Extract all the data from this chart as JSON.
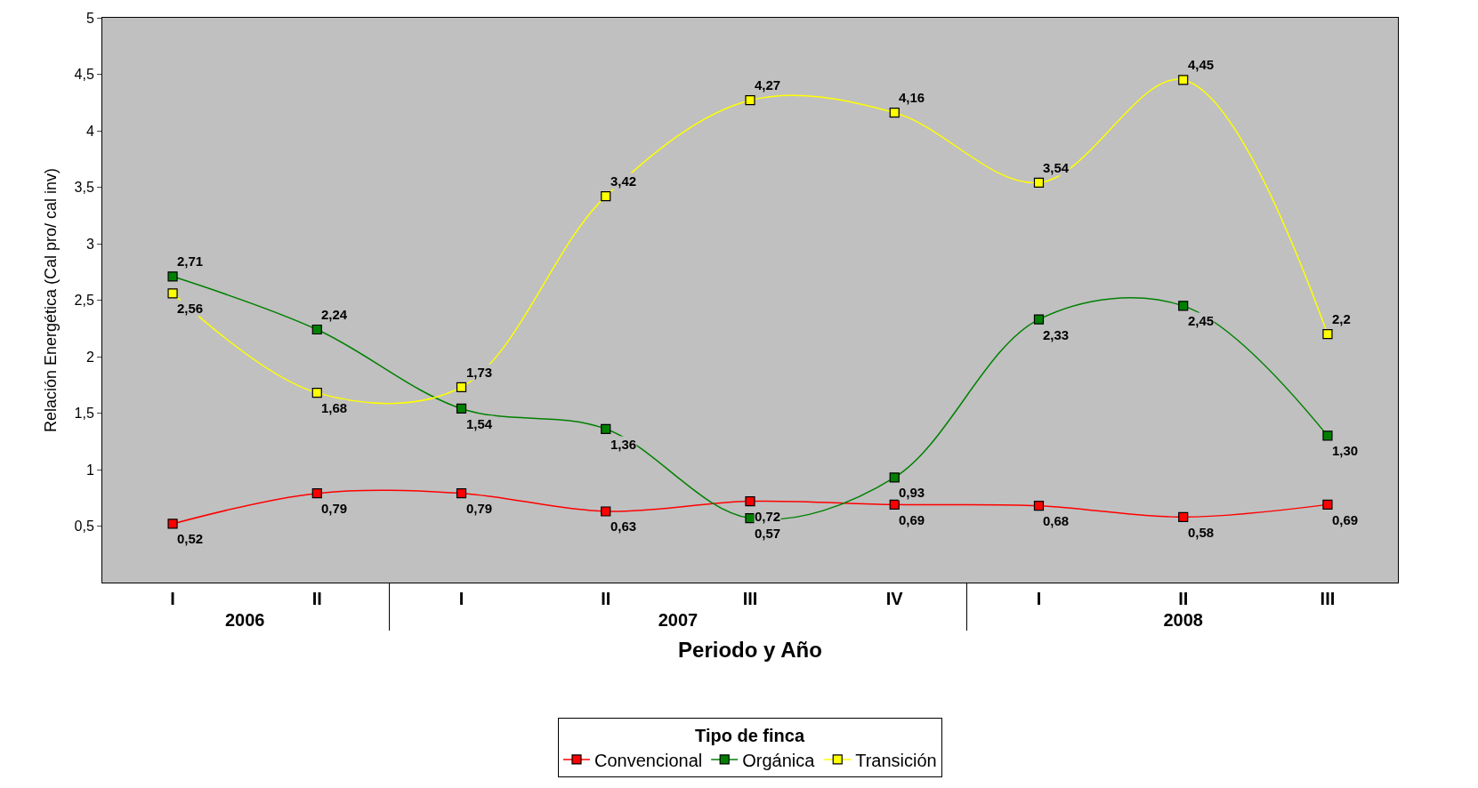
{
  "chart_data": {
    "type": "line",
    "xlabel": "Periodo y Año",
    "ylabel": "Relación Energética (Cal pro/ cal inv)",
    "legend_title": "Tipo de finca",
    "categories": [
      [
        "2006",
        "I"
      ],
      [
        null,
        "II"
      ],
      [
        "2007",
        "I"
      ],
      [
        null,
        "II"
      ],
      [
        null,
        "III"
      ],
      [
        null,
        "IV"
      ],
      [
        "2008",
        "I"
      ],
      [
        null,
        "II"
      ],
      [
        null,
        "III"
      ]
    ],
    "series": [
      {
        "name": "Convencional",
        "color": "#ff0000",
        "values": [
          0.52,
          0.79,
          0.79,
          0.63,
          0.72,
          0.69,
          0.68,
          0.58,
          0.69
        ],
        "value_labels": [
          "0,52",
          "0,79",
          "0,79",
          "0,63",
          "0,72",
          "0,69",
          "0,68",
          "0,58",
          "0,69"
        ]
      },
      {
        "name": "Orgánica",
        "color": "#008000",
        "values": [
          2.71,
          2.24,
          1.54,
          1.36,
          0.57,
          0.93,
          2.33,
          2.45,
          1.3
        ],
        "value_labels": [
          "2,71",
          "2,24",
          "1,54",
          "1,36",
          "0,57",
          "0,93",
          "2,33",
          "2,45",
          "1,30"
        ]
      },
      {
        "name": "Transición",
        "color": "#ffff00",
        "values": [
          2.56,
          1.68,
          1.73,
          3.42,
          4.27,
          4.16,
          3.54,
          4.45,
          2.2
        ],
        "value_labels": [
          "2,56",
          "1,68",
          "1,73",
          "3,42",
          "4,27",
          "4,16",
          "3,54",
          "4,45",
          "2,2"
        ]
      }
    ],
    "ylim": [
      0,
      5
    ],
    "yticks": [
      {
        "value": 0.5,
        "label": "0,5"
      },
      1,
      {
        "value": 1.5,
        "label": "1,5"
      },
      2,
      {
        "value": 2.5,
        "label": "2,5"
      },
      3,
      {
        "value": 3.5,
        "label": "3,5"
      },
      4,
      {
        "value": 4.5,
        "label": "4,5"
      },
      5
    ],
    "grid": false,
    "legend": "bottom",
    "marker": "square",
    "line_style": "solid"
  }
}
